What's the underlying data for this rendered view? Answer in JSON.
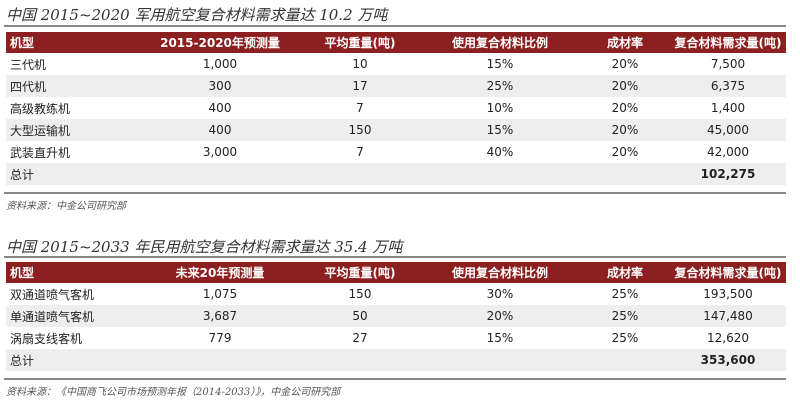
{
  "table1": {
    "title": "中国 2015~2020 军用航空复合材料需求量达 10.2 万吨",
    "headers": [
      "机型",
      "2015-2020年预测量",
      "平均重量(吨)",
      "使用复合材料比例",
      "成材率",
      "复合材料需求量(吨)"
    ],
    "rows": [
      [
        "三代机",
        "1,000",
        "10",
        "15%",
        "20%",
        "7,500"
      ],
      [
        "四代机",
        "300",
        "17",
        "25%",
        "20%",
        "6,375"
      ],
      [
        "高级教练机",
        "400",
        "7",
        "10%",
        "20%",
        "1,400"
      ],
      [
        "大型运输机",
        "400",
        "150",
        "15%",
        "20%",
        "45,000"
      ],
      [
        "武装直升机",
        "3,000",
        "7",
        "40%",
        "20%",
        "42,000"
      ]
    ],
    "total_label": "总计",
    "total_value": "102,275",
    "source": "资料来源：中金公司研究部"
  },
  "table2": {
    "title": "中国 2015~2033 年民用航空复合材料需求量达 35.4 万吨",
    "headers": [
      "机型",
      "未来20年预测量",
      "平均重量(吨)",
      "使用复合材料比例",
      "成材率",
      "复合材料需求量(吨)"
    ],
    "rows": [
      [
        "双通道喷气客机",
        "1,075",
        "150",
        "30%",
        "25%",
        "193,500"
      ],
      [
        "单通道喷气客机",
        "3,687",
        "50",
        "20%",
        "25%",
        "147,480"
      ],
      [
        "涡扇支线客机",
        "779",
        "27",
        "15%",
        "25%",
        "12,620"
      ]
    ],
    "total_label": "总计",
    "total_value": "353,600",
    "source": "资料来源：《中国商飞公司市场预测年报（2014-2033）》，中金公司研究部"
  },
  "colors": {
    "header_bg": "#8c1f1f",
    "alt_row": "#eeeeee"
  }
}
